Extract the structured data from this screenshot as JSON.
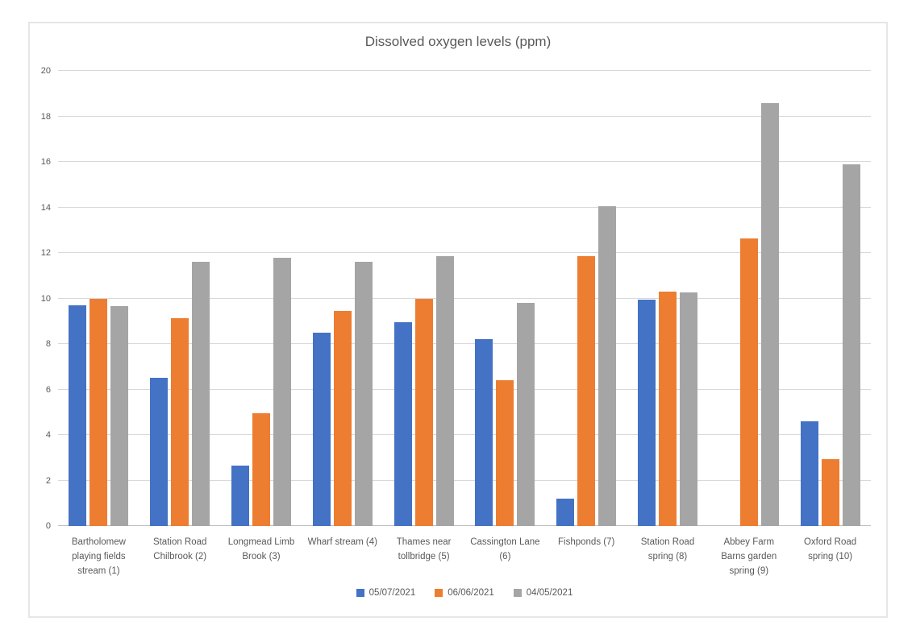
{
  "chart_data": {
    "type": "bar",
    "title": "Dissolved oxygen levels (ppm)",
    "categories": [
      "Bartholomew playing fields stream (1)",
      "Station Road Chilbrook (2)",
      "Longmead Limb Brook (3)",
      "Wharf stream (4)",
      "Thames near tollbridge (5)",
      "Cassington Lane (6)",
      "Fishponds (7)",
      "Station Road spring (8)",
      "Abbey Farm Barns garden spring (9)",
      "Oxford Road spring (10)"
    ],
    "series": [
      {
        "name": "05/07/2021",
        "color": "#4472C4",
        "values": [
          9.7,
          6.5,
          2.65,
          8.5,
          8.95,
          8.2,
          1.2,
          9.95,
          0,
          4.6
        ]
      },
      {
        "name": "06/06/2021",
        "color": "#ED7D31",
        "values": [
          10.0,
          9.15,
          4.95,
          9.45,
          10.0,
          6.4,
          11.85,
          10.3,
          12.65,
          2.95
        ]
      },
      {
        "name": "04/05/2021",
        "color": "#A5A5A5",
        "values": [
          9.65,
          11.6,
          11.8,
          11.6,
          11.85,
          9.8,
          14.05,
          10.25,
          18.6,
          15.9
        ]
      }
    ],
    "xlabel": "",
    "ylabel": "",
    "ylim": [
      0,
      20
    ],
    "yticks": [
      0,
      2,
      4,
      6,
      8,
      10,
      12,
      14,
      16,
      18,
      20
    ],
    "grid": true,
    "legend_position": "bottom"
  },
  "colors": {
    "grid": "#D9D9D9",
    "axis": "#BFBFBF",
    "text": "#595959",
    "figure_border": "#E6E6E6",
    "background": "#FFFFFF"
  }
}
